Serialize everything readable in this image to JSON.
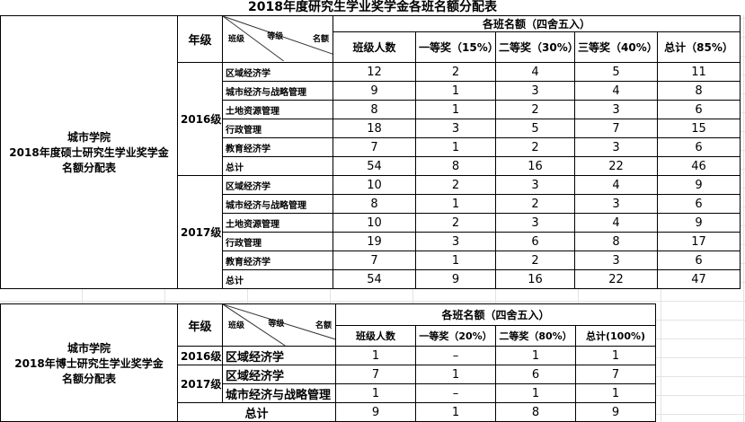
{
  "title": "2018年度研究生学业奖学金各班名额分配表",
  "master": {
    "label_lines": [
      "城市学院",
      "2018年度硕士研究生学业奖学金",
      "名额分配表"
    ],
    "grade_header": "年级",
    "diag": {
      "class": "班级",
      "level": "等级",
      "quota": "名额"
    },
    "group_header": "各班名额（四舍五入）",
    "columns": [
      "班级人数",
      "一等奖（15%）",
      "二等奖（30%）",
      "三等奖（40%）",
      "总计（85%）"
    ],
    "groups": [
      {
        "grade": "2016级",
        "rows": [
          {
            "name": "区域经济学",
            "v": [
              "12",
              "2",
              "4",
              "5",
              "11"
            ]
          },
          {
            "name": "城市经济与战略管理",
            "v": [
              "9",
              "1",
              "3",
              "4",
              "8"
            ]
          },
          {
            "name": "土地资源管理",
            "v": [
              "8",
              "1",
              "2",
              "3",
              "6"
            ]
          },
          {
            "name": "行政管理",
            "v": [
              "18",
              "3",
              "5",
              "7",
              "15"
            ]
          },
          {
            "name": "教育经济学",
            "v": [
              "7",
              "1",
              "2",
              "3",
              "6"
            ]
          },
          {
            "name": "总计",
            "v": [
              "54",
              "8",
              "16",
              "22",
              "46"
            ]
          }
        ]
      },
      {
        "grade": "2017级",
        "rows": [
          {
            "name": "区域经济学",
            "v": [
              "10",
              "2",
              "3",
              "4",
              "9"
            ]
          },
          {
            "name": "城市经济与战略管理",
            "v": [
              "8",
              "1",
              "2",
              "3",
              "6"
            ]
          },
          {
            "name": "土地资源管理",
            "v": [
              "10",
              "2",
              "3",
              "4",
              "9"
            ]
          },
          {
            "name": "行政管理",
            "v": [
              "19",
              "3",
              "6",
              "8",
              "17"
            ]
          },
          {
            "name": "教育经济学",
            "v": [
              "7",
              "1",
              "2",
              "3",
              "6"
            ]
          },
          {
            "name": "总计",
            "v": [
              "54",
              "9",
              "16",
              "22",
              "47"
            ]
          }
        ]
      }
    ]
  },
  "doctor": {
    "label_lines": [
      "城市学院",
      "2018年博士研究生学业奖学金",
      "名额分配表"
    ],
    "grade_header": "年级",
    "diag": {
      "class": "班级",
      "level": "等级",
      "quota": "名额"
    },
    "group_header": "各班名额（四舍五入）",
    "columns": [
      "班级人数",
      "一等奖（20%）",
      "二等奖（80%）",
      "总计(100%)"
    ],
    "rows": [
      {
        "grade": "2016级",
        "name": "区域经济学",
        "v": [
          "1",
          "–",
          "1",
          "1"
        ]
      },
      {
        "grade": "2017级",
        "name": "区域经济学",
        "v": [
          "7",
          "1",
          "6",
          "7"
        ]
      },
      {
        "grade": "",
        "name": "城市经济与战略管理",
        "v": [
          "1",
          "–",
          "1",
          "1"
        ]
      }
    ],
    "total": {
      "label": "总计",
      "v": [
        "9",
        "1",
        "8",
        "9"
      ]
    }
  }
}
